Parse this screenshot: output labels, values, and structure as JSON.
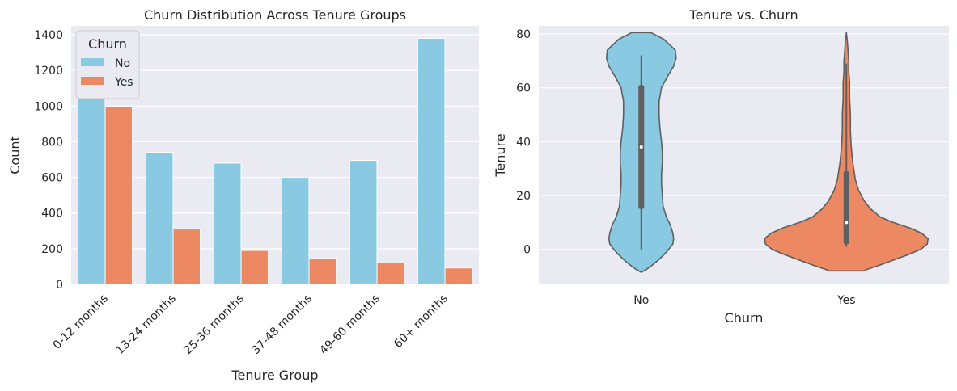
{
  "chart_data": [
    {
      "type": "bar",
      "title": "Churn Distribution Across Tenure Groups",
      "xlabel": "Tenure Group",
      "ylabel": "Count",
      "ylim": [
        0,
        1450
      ],
      "yticks": [
        0,
        200,
        400,
        600,
        800,
        1000,
        1200,
        1400
      ],
      "categories": [
        "0-12 months",
        "13-24 months",
        "25-36 months",
        "37-48 months",
        "49-60 months",
        "60+ months"
      ],
      "legend_title": "Churn",
      "legend_position": "top-left",
      "grid": true,
      "series": [
        {
          "name": "No",
          "color": "#89c9e2",
          "values": [
            1070,
            740,
            680,
            600,
            695,
            1380
          ]
        },
        {
          "name": "Yes",
          "color": "#ec8862",
          "values": [
            998,
            310,
            190,
            145,
            120,
            92
          ]
        }
      ]
    },
    {
      "type": "violin",
      "title": "Tenure vs. Churn",
      "xlabel": "Churn",
      "ylabel": "Tenure",
      "ylim": [
        -13,
        83
      ],
      "yticks": [
        0,
        20,
        40,
        60,
        80
      ],
      "categories": [
        "No",
        "Yes"
      ],
      "grid": true,
      "series": [
        {
          "name": "No",
          "color": "#89c9e2",
          "median": 38,
          "q1": 15,
          "q3": 61,
          "whisker_low": 0,
          "whisker_high": 72
        },
        {
          "name": "Yes",
          "color": "#ec8862",
          "median": 10,
          "q1": 2,
          "q3": 29,
          "whisker_low": 1,
          "whisker_high": 69
        }
      ]
    }
  ]
}
